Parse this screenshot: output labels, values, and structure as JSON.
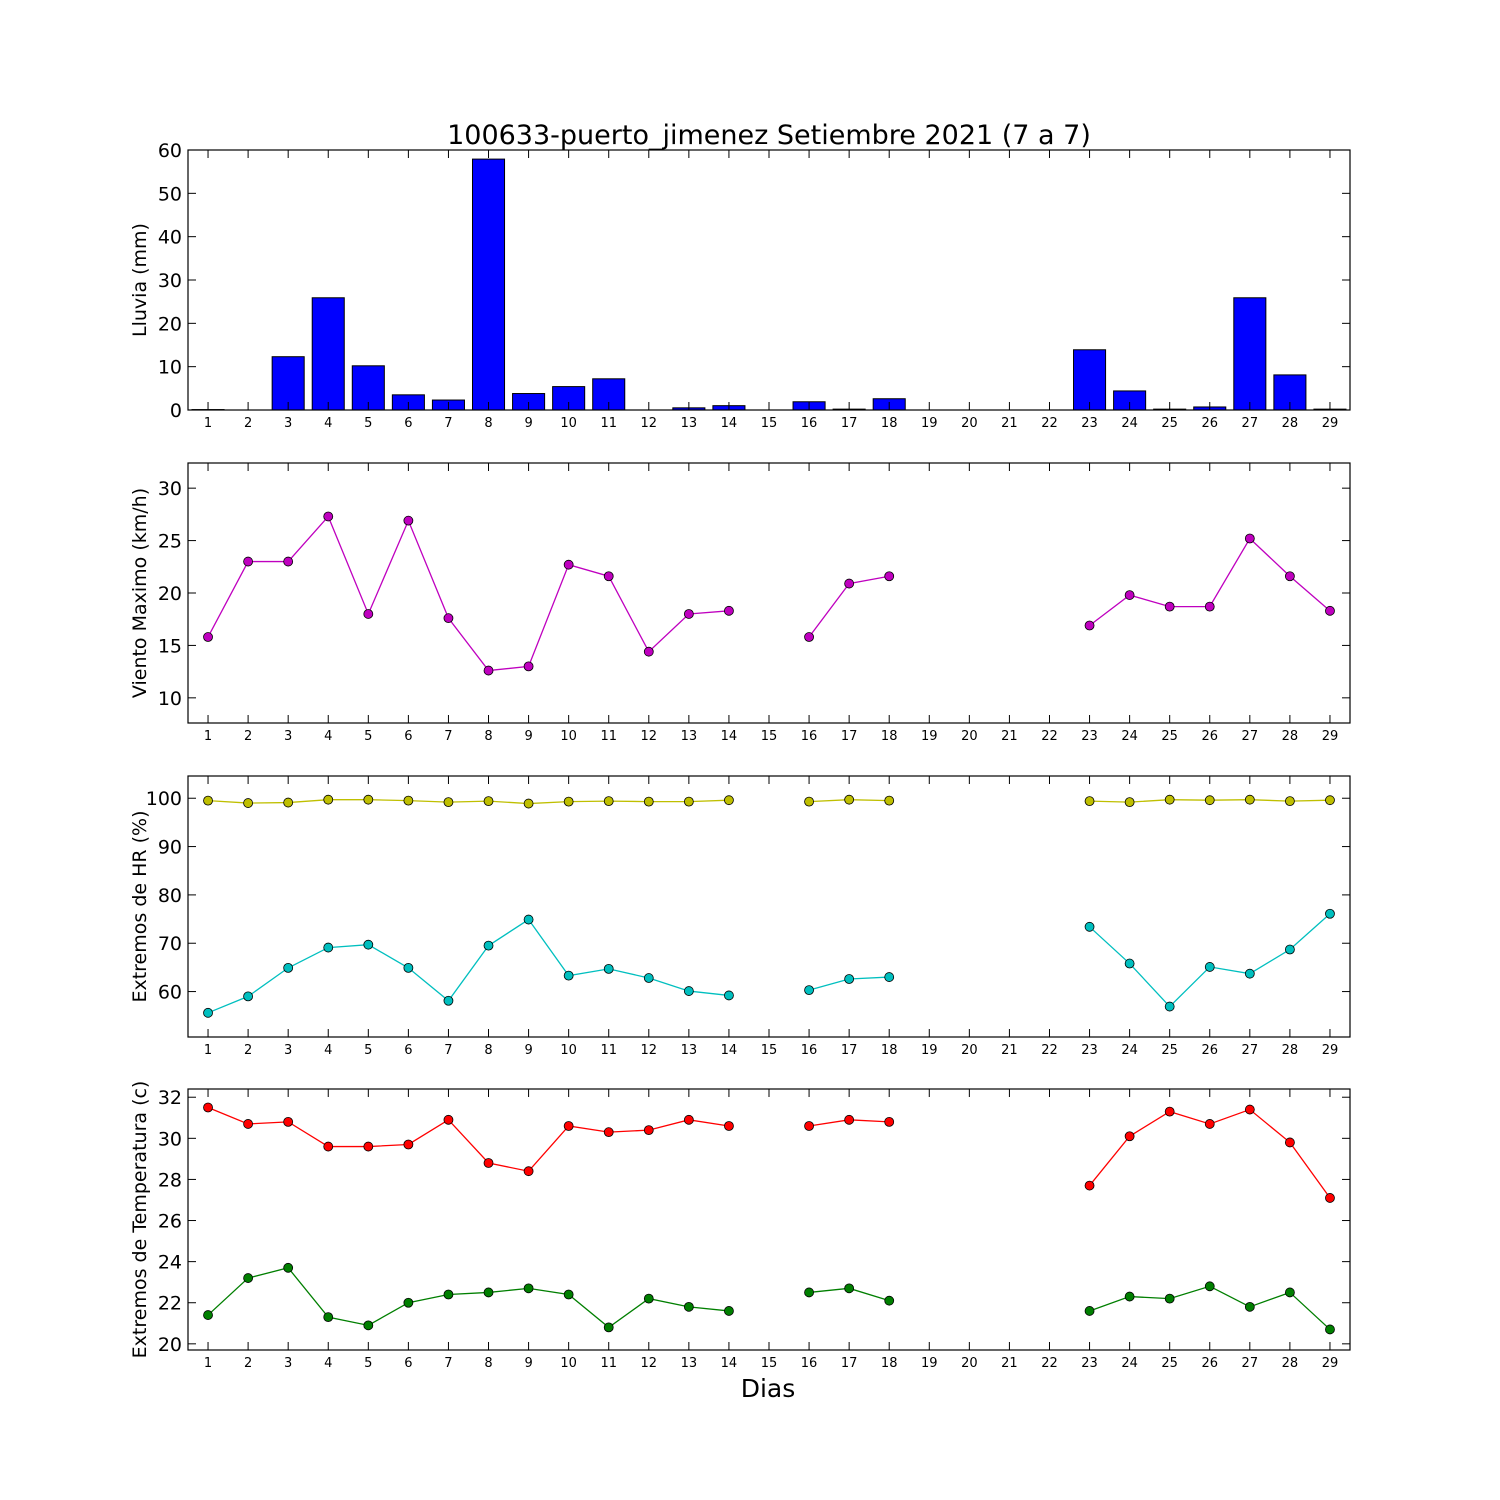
{
  "chart_data": [
    {
      "type": "bar",
      "title": "100633-puerto_jimenez Setiembre 2021  (7 a 7)",
      "xlabel": "",
      "ylabel": "Lluvia (mm)",
      "ylim": [
        0,
        60
      ],
      "yticks": [
        0,
        10,
        20,
        30,
        40,
        50,
        60
      ],
      "categories": [
        "1",
        "2",
        "3",
        "4",
        "5",
        "6",
        "7",
        "8",
        "9",
        "10",
        "11",
        "12",
        "13",
        "14",
        "15",
        "16",
        "17",
        "18",
        "19",
        "20",
        "21",
        "22",
        "23",
        "24",
        "25",
        "26",
        "27",
        "28",
        "29"
      ],
      "series": [
        {
          "color": "#0000ff",
          "values": [
            0.1,
            0,
            12.3,
            25.9,
            10.2,
            3.5,
            2.3,
            57.9,
            3.8,
            5.4,
            7.2,
            0,
            0.5,
            1.0,
            0,
            1.9,
            0.2,
            2.6,
            0,
            0,
            0,
            0,
            13.9,
            4.4,
            0.2,
            0.7,
            25.9,
            8.1,
            0.2
          ]
        }
      ]
    },
    {
      "type": "line",
      "ylabel": "Viento Maximo (km/h)",
      "ylim": [
        7.6,
        32.4
      ],
      "yticks": [
        10,
        15,
        20,
        25,
        30
      ],
      "categories": [
        "1",
        "2",
        "3",
        "4",
        "5",
        "6",
        "7",
        "8",
        "9",
        "10",
        "11",
        "12",
        "13",
        "14",
        "15",
        "16",
        "17",
        "18",
        "19",
        "20",
        "21",
        "22",
        "23",
        "24",
        "25",
        "26",
        "27",
        "28",
        "29"
      ],
      "series": [
        {
          "color": "#bf00bf",
          "values": [
            15.8,
            23.0,
            23.0,
            27.3,
            18.0,
            26.9,
            17.6,
            12.6,
            13.0,
            22.7,
            21.6,
            14.4,
            18.0,
            18.3,
            null,
            15.8,
            20.9,
            21.6,
            null,
            null,
            null,
            null,
            16.9,
            19.8,
            18.7,
            18.7,
            25.2,
            21.6,
            18.3
          ]
        }
      ]
    },
    {
      "type": "line",
      "ylabel": "Extremos de HR (%)",
      "ylim": [
        50.6,
        104.6
      ],
      "yticks": [
        60,
        70,
        80,
        90,
        100
      ],
      "categories": [
        "1",
        "2",
        "3",
        "4",
        "5",
        "6",
        "7",
        "8",
        "9",
        "10",
        "11",
        "12",
        "13",
        "14",
        "15",
        "16",
        "17",
        "18",
        "19",
        "20",
        "21",
        "22",
        "23",
        "24",
        "25",
        "26",
        "27",
        "28",
        "29"
      ],
      "series": [
        {
          "color": "#bfbf00",
          "values": [
            99.5,
            99.0,
            99.1,
            99.7,
            99.7,
            99.5,
            99.2,
            99.4,
            98.9,
            99.3,
            99.4,
            99.3,
            99.3,
            99.6,
            null,
            99.3,
            99.7,
            99.5,
            null,
            null,
            null,
            null,
            99.4,
            99.2,
            99.7,
            99.6,
            99.7,
            99.4,
            99.6
          ]
        },
        {
          "color": "#00bfbf",
          "values": [
            55.6,
            59.0,
            64.9,
            69.1,
            69.7,
            64.9,
            58.1,
            69.5,
            74.9,
            63.3,
            64.7,
            62.8,
            60.1,
            59.2,
            null,
            60.3,
            62.6,
            63.0,
            null,
            null,
            null,
            null,
            73.4,
            65.8,
            56.9,
            65.1,
            63.7,
            68.7,
            76.1
          ]
        }
      ]
    },
    {
      "type": "line",
      "xlabel": "Dias",
      "ylabel": "Extremos de Temperatura (c)",
      "ylim": [
        19.7,
        32.4
      ],
      "yticks": [
        20,
        22,
        24,
        26,
        28,
        30,
        32
      ],
      "categories": [
        "1",
        "2",
        "3",
        "4",
        "5",
        "6",
        "7",
        "8",
        "9",
        "10",
        "11",
        "12",
        "13",
        "14",
        "15",
        "16",
        "17",
        "18",
        "19",
        "20",
        "21",
        "22",
        "23",
        "24",
        "25",
        "26",
        "27",
        "28",
        "29"
      ],
      "series": [
        {
          "color": "#ff0000",
          "values": [
            31.5,
            30.7,
            30.8,
            29.6,
            29.6,
            29.7,
            30.9,
            28.8,
            28.4,
            30.6,
            30.3,
            30.4,
            30.9,
            30.6,
            null,
            30.6,
            30.9,
            30.8,
            null,
            null,
            null,
            null,
            27.7,
            30.1,
            31.3,
            30.7,
            31.4,
            29.8,
            27.1
          ]
        },
        {
          "color": "#007f00",
          "values": [
            21.4,
            23.2,
            23.7,
            21.3,
            20.9,
            22.0,
            22.4,
            22.5,
            22.7,
            22.4,
            20.8,
            22.2,
            21.8,
            21.6,
            null,
            22.5,
            22.7,
            22.1,
            null,
            null,
            null,
            null,
            21.6,
            22.3,
            22.2,
            22.8,
            21.8,
            22.5,
            20.7
          ]
        }
      ]
    }
  ]
}
